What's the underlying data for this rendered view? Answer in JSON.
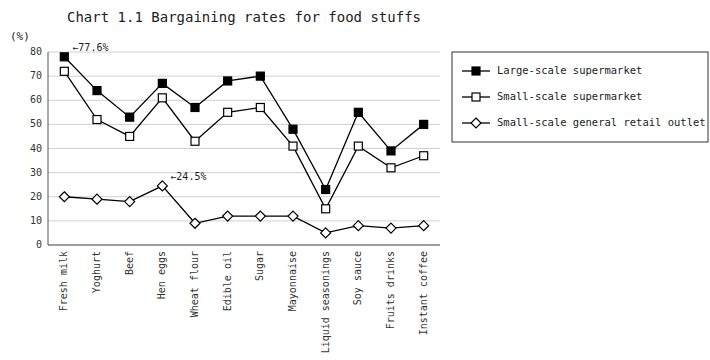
{
  "chart_data": {
    "type": "line",
    "title": "Chart 1.1 Bargaining rates for food stuffs",
    "ylabel": "(%)",
    "categories": [
      "Fresh milk",
      "Yoghurt",
      "Beef",
      "Hen eggs",
      "Wheat flour",
      "Edible oil",
      "Sugar",
      "Mayonnaise",
      "Liquid seasonings",
      "Soy sauce",
      "Fruits drinks",
      "Instant coffee"
    ],
    "series": [
      {
        "name": "Large-scale supermarket",
        "color": "#000000",
        "marker": "square",
        "values": [
          78,
          64,
          53,
          67,
          57,
          68,
          70,
          48,
          23,
          55,
          39,
          50
        ]
      },
      {
        "name": "Small-scale supermarket",
        "color": "#000000",
        "marker": "square-open",
        "values": [
          72,
          52,
          45,
          61,
          43,
          55,
          57,
          41,
          15,
          41,
          32,
          37
        ]
      },
      {
        "name": "Small-scale general retail outlet",
        "color": "#000000",
        "marker": "diamond-open",
        "values": [
          20,
          19,
          18,
          24.5,
          9,
          12,
          12,
          12,
          5,
          8,
          7,
          8
        ]
      }
    ],
    "annotations": [
      {
        "text": "←77.6%",
        "x": 0,
        "y": 78
      },
      {
        "text": "←24.5%",
        "x": 3,
        "y": 24.5
      }
    ],
    "ylim": [
      0,
      80
    ],
    "yticks": [
      0,
      10,
      20,
      30,
      40,
      50,
      60,
      70,
      80
    ],
    "grid": true,
    "legend": "right"
  }
}
